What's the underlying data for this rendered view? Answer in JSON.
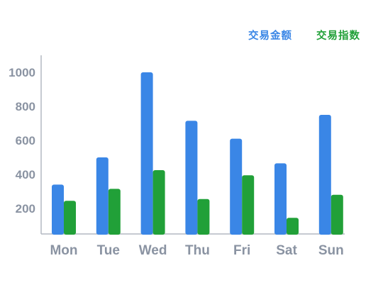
{
  "colors": {
    "series1": "#3a86e6",
    "series2": "#21a038",
    "axis": "#b3b9c2",
    "text": "#8a93a2"
  },
  "chart_data": {
    "type": "bar",
    "categories": [
      "Mon",
      "Tue",
      "Wed",
      "Thu",
      "Fri",
      "Sat",
      "Sun"
    ],
    "series": [
      {
        "name": "交易金额",
        "values": [
          340,
          500,
          1000,
          715,
          610,
          465,
          750
        ]
      },
      {
        "name": "交易指数",
        "values": [
          245,
          315,
          425,
          255,
          395,
          145,
          280
        ]
      }
    ],
    "y_ticks": [
      200,
      400,
      600,
      800,
      1000
    ],
    "ylim": [
      50,
      1100
    ],
    "grid": false,
    "legend_position": "top-right"
  }
}
